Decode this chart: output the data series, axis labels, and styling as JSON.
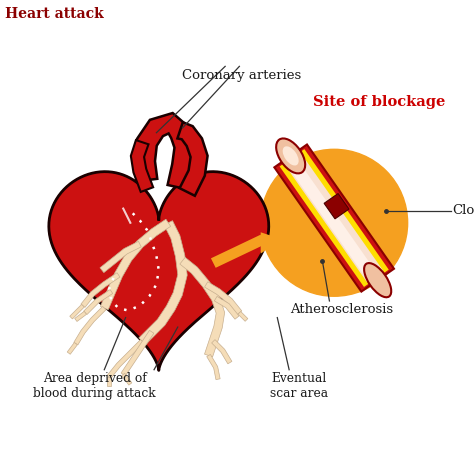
{
  "background_color": "#ffffff",
  "title": "Heart attack",
  "title_color": "#8b0000",
  "title_fontsize": 10,
  "labels": {
    "coronary_arteries": "Coronary arteries",
    "site_of_blockage": "Site of blockage",
    "clot": "Clot",
    "atherosclerosis": "Atherosclerosis",
    "area_deprived": "Area deprived of\nblood during attack",
    "eventual_scar": "Eventual\nscar area"
  },
  "label_color": "#1a1a1a",
  "site_blockage_color": "#cc0000",
  "heart_fill": "#cc1111",
  "heart_outline": "#1a0000",
  "orange_circle": "#f5a020",
  "orange_arrow": "#f5a020",
  "branch_fill": "#f5ddb8",
  "branch_outline": "#1a0000",
  "artery_outer": "#cc1111",
  "artery_yellow": "#ffdd00",
  "artery_cream": "#f8e8d0",
  "artery_pink": "#f0b8a0",
  "clot_color": "#8b0000",
  "dotted_color": "#ffffff",
  "line_color": "#333333"
}
